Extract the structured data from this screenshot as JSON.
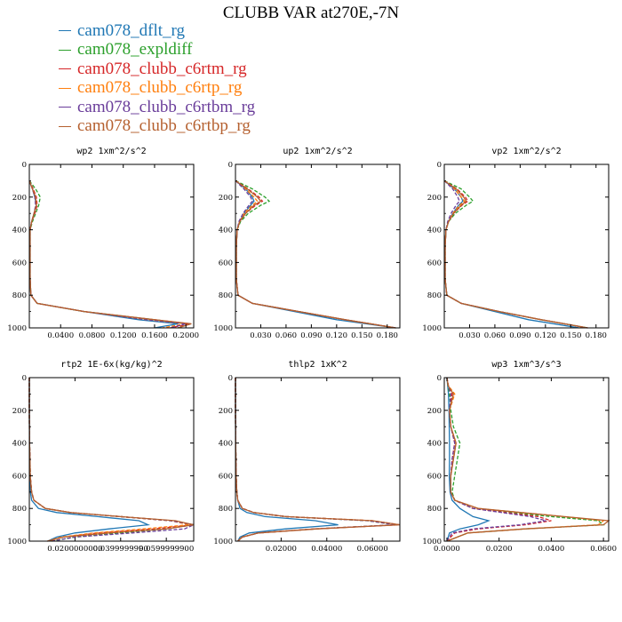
{
  "title": "CLUBB VAR at270E,-7N",
  "legend": [
    {
      "name": "cam078_dflt_rg",
      "color": "#1f77b4"
    },
    {
      "name": "cam078_expldiff",
      "color": "#2ca02c"
    },
    {
      "name": "cam078_clubb_c6rtm_rg",
      "color": "#d62728"
    },
    {
      "name": "cam078_clubb_c6rtp_rg",
      "color": "#ff7f0e"
    },
    {
      "name": "cam078_clubb_c6rtbm_rg",
      "color": "#6a3d9a"
    },
    {
      "name": "cam078_clubb_c6rtbp_rg",
      "color": "#b5602f"
    }
  ],
  "chart_data": [
    {
      "type": "line",
      "title": "wp2 1xm^2/s^2",
      "xlim": [
        0,
        0.21
      ],
      "ylim": [
        1000,
        0
      ],
      "xticks": [
        "0.0400",
        "0.0800",
        "0.1200",
        "0.1600",
        "0.2000"
      ],
      "xtick_values": [
        0.04,
        0.08,
        0.12,
        0.16,
        0.2
      ],
      "yticks": [
        "0",
        "200",
        "400",
        "600",
        "800",
        "1000"
      ],
      "y": [
        100,
        150,
        200,
        250,
        300,
        350,
        400,
        500,
        600,
        700,
        800,
        850,
        900,
        950,
        975,
        1000
      ],
      "series": [
        {
          "color": "#1f77b4",
          "dash": "",
          "values": [
            0,
            0.004,
            0.007,
            0.009,
            0.006,
            0.003,
            0.001,
            0.001,
            0.001,
            0.001,
            0.002,
            0.01,
            0.07,
            0.14,
            0.19,
            0.16
          ]
        },
        {
          "color": "#2ca02c",
          "dash": "4,2",
          "values": [
            0,
            0.008,
            0.014,
            0.012,
            0.008,
            0.004,
            0.001,
            0.001,
            0.001,
            0.001,
            0.002,
            0.01,
            0.07,
            0.16,
            0.2,
            0.19
          ]
        },
        {
          "color": "#d62728",
          "dash": "4,2",
          "values": [
            0,
            0.005,
            0.009,
            0.01,
            0.007,
            0.003,
            0.001,
            0.001,
            0.001,
            0.001,
            0.002,
            0.01,
            0.07,
            0.16,
            0.205,
            0.18
          ]
        },
        {
          "color": "#ff7f0e",
          "dash": "4,2",
          "values": [
            0,
            0.004,
            0.008,
            0.009,
            0.006,
            0.003,
            0.001,
            0.001,
            0.001,
            0.001,
            0.002,
            0.01,
            0.07,
            0.15,
            0.2,
            0.17
          ]
        },
        {
          "color": "#6a3d9a",
          "dash": "4,2",
          "values": [
            0,
            0.004,
            0.007,
            0.008,
            0.006,
            0.003,
            0.001,
            0.001,
            0.001,
            0.001,
            0.002,
            0.01,
            0.07,
            0.15,
            0.2,
            0.18
          ]
        },
        {
          "color": "#b5602f",
          "dash": "",
          "values": [
            0,
            0.004,
            0.008,
            0.009,
            0.006,
            0.003,
            0.001,
            0.001,
            0.001,
            0.001,
            0.002,
            0.01,
            0.07,
            0.16,
            0.207,
            0.19
          ]
        }
      ]
    },
    {
      "type": "line",
      "title": "up2 1xm^2/s^2",
      "xlim": [
        0,
        0.195
      ],
      "ylim": [
        1000,
        0
      ],
      "xticks": [
        "0.030",
        "0.060",
        "0.090",
        "0.120",
        "0.150",
        "0.180"
      ],
      "xtick_values": [
        0.03,
        0.06,
        0.09,
        0.12,
        0.15,
        0.18
      ],
      "yticks": [
        "0",
        "200",
        "400",
        "600",
        "800",
        "1000"
      ],
      "y": [
        100,
        150,
        200,
        225,
        250,
        300,
        350,
        400,
        500,
        600,
        700,
        800,
        850,
        900,
        950,
        1000
      ],
      "series": [
        {
          "color": "#1f77b4",
          "dash": "",
          "values": [
            0,
            0.012,
            0.02,
            0.022,
            0.018,
            0.01,
            0.005,
            0.002,
            0.001,
            0.001,
            0.001,
            0.003,
            0.02,
            0.07,
            0.12,
            0.19
          ]
        },
        {
          "color": "#2ca02c",
          "dash": "4,2",
          "values": [
            0,
            0.02,
            0.035,
            0.04,
            0.03,
            0.015,
            0.006,
            0.002,
            0.001,
            0.001,
            0.001,
            0.003,
            0.02,
            0.075,
            0.13,
            0.19
          ]
        },
        {
          "color": "#d62728",
          "dash": "4,2",
          "values": [
            0,
            0.015,
            0.028,
            0.032,
            0.024,
            0.012,
            0.005,
            0.002,
            0.001,
            0.001,
            0.001,
            0.003,
            0.02,
            0.075,
            0.13,
            0.19
          ]
        },
        {
          "color": "#ff7f0e",
          "dash": "4,2",
          "values": [
            0,
            0.012,
            0.022,
            0.026,
            0.02,
            0.01,
            0.005,
            0.002,
            0.001,
            0.001,
            0.001,
            0.003,
            0.02,
            0.075,
            0.13,
            0.19
          ]
        },
        {
          "color": "#6a3d9a",
          "dash": "4,2",
          "values": [
            0,
            0.01,
            0.018,
            0.02,
            0.016,
            0.009,
            0.004,
            0.002,
            0.001,
            0.001,
            0.001,
            0.003,
            0.02,
            0.075,
            0.13,
            0.19
          ]
        },
        {
          "color": "#b5602f",
          "dash": "",
          "values": [
            0,
            0.014,
            0.026,
            0.03,
            0.022,
            0.012,
            0.005,
            0.002,
            0.001,
            0.001,
            0.001,
            0.003,
            0.02,
            0.075,
            0.13,
            0.19
          ]
        }
      ]
    },
    {
      "type": "line",
      "title": "vp2 1xm^2/s^2",
      "xlim": [
        0,
        0.195
      ],
      "ylim": [
        1000,
        0
      ],
      "xticks": [
        "0.030",
        "0.060",
        "0.090",
        "0.120",
        "0.150",
        "0.180"
      ],
      "xtick_values": [
        0.03,
        0.06,
        0.09,
        0.12,
        0.15,
        0.18
      ],
      "yticks": [
        "0",
        "200",
        "400",
        "600",
        "800",
        "1000"
      ],
      "y": [
        100,
        150,
        200,
        225,
        250,
        300,
        350,
        400,
        500,
        600,
        700,
        800,
        850,
        900,
        950,
        1000
      ],
      "series": [
        {
          "color": "#1f77b4",
          "dash": "",
          "values": [
            0,
            0.012,
            0.02,
            0.022,
            0.017,
            0.01,
            0.005,
            0.002,
            0.001,
            0.001,
            0.001,
            0.003,
            0.02,
            0.06,
            0.1,
            0.16
          ]
        },
        {
          "color": "#2ca02c",
          "dash": "4,2",
          "values": [
            0,
            0.02,
            0.03,
            0.034,
            0.026,
            0.013,
            0.005,
            0.002,
            0.001,
            0.001,
            0.001,
            0.003,
            0.02,
            0.065,
            0.115,
            0.17
          ]
        },
        {
          "color": "#d62728",
          "dash": "4,2",
          "values": [
            0,
            0.015,
            0.025,
            0.028,
            0.021,
            0.011,
            0.005,
            0.002,
            0.001,
            0.001,
            0.001,
            0.003,
            0.02,
            0.065,
            0.115,
            0.17
          ]
        },
        {
          "color": "#ff7f0e",
          "dash": "4,2",
          "values": [
            0,
            0.012,
            0.02,
            0.024,
            0.018,
            0.01,
            0.005,
            0.002,
            0.001,
            0.001,
            0.001,
            0.003,
            0.02,
            0.065,
            0.115,
            0.17
          ]
        },
        {
          "color": "#6a3d9a",
          "dash": "4,2",
          "values": [
            0,
            0.01,
            0.016,
            0.018,
            0.014,
            0.008,
            0.004,
            0.002,
            0.001,
            0.001,
            0.001,
            0.003,
            0.02,
            0.065,
            0.115,
            0.17
          ]
        },
        {
          "color": "#b5602f",
          "dash": "",
          "values": [
            0,
            0.014,
            0.023,
            0.026,
            0.02,
            0.011,
            0.005,
            0.002,
            0.001,
            0.001,
            0.001,
            0.003,
            0.02,
            0.065,
            0.115,
            0.17
          ]
        }
      ]
    },
    {
      "type": "line",
      "title": "rtp2 1E-6x(kg/kg)^2",
      "xlim": [
        0,
        0.072
      ],
      "ylim": [
        1000,
        0
      ],
      "xticks": [
        "0.0200000000",
        "0.0399999990",
        "0.0599999900"
      ],
      "xtick_values": [
        0.02,
        0.04,
        0.06
      ],
      "yticks": [
        "0",
        "200",
        "400",
        "600",
        "800",
        "1000"
      ],
      "y": [
        0,
        200,
        400,
        500,
        600,
        700,
        750,
        800,
        825,
        850,
        875,
        900,
        925,
        950,
        975,
        1000
      ],
      "series": [
        {
          "color": "#1f77b4",
          "dash": "",
          "values": [
            0,
            0,
            0.0001,
            0.0002,
            0.0003,
            0.0005,
            0.001,
            0.004,
            0.012,
            0.03,
            0.048,
            0.052,
            0.035,
            0.02,
            0.012,
            0.008
          ]
        },
        {
          "color": "#2ca02c",
          "dash": "4,2",
          "values": [
            0,
            0,
            0.0001,
            0.0003,
            0.0004,
            0.001,
            0.002,
            0.007,
            0.018,
            0.04,
            0.062,
            0.072,
            0.06,
            0.04,
            0.02,
            0.01
          ]
        },
        {
          "color": "#d62728",
          "dash": "4,2",
          "values": [
            0,
            0,
            0.0001,
            0.0003,
            0.0004,
            0.001,
            0.002,
            0.007,
            0.018,
            0.04,
            0.062,
            0.072,
            0.055,
            0.03,
            0.015,
            0.008
          ]
        },
        {
          "color": "#ff7f0e",
          "dash": "4,2",
          "values": [
            0,
            0,
            0.0001,
            0.0003,
            0.0004,
            0.001,
            0.002,
            0.007,
            0.018,
            0.04,
            0.062,
            0.07,
            0.05,
            0.028,
            0.014,
            0.008
          ]
        },
        {
          "color": "#6a3d9a",
          "dash": "4,2",
          "values": [
            0,
            0,
            0.0001,
            0.0003,
            0.0004,
            0.001,
            0.002,
            0.007,
            0.018,
            0.04,
            0.062,
            0.072,
            0.068,
            0.045,
            0.02,
            0.01
          ]
        },
        {
          "color": "#b5602f",
          "dash": "",
          "values": [
            0,
            0,
            0.0001,
            0.0003,
            0.0004,
            0.001,
            0.002,
            0.007,
            0.018,
            0.04,
            0.064,
            0.072,
            0.06,
            0.035,
            0.015,
            0.008
          ]
        }
      ]
    },
    {
      "type": "line",
      "title": "thlp2 1xK^2",
      "xlim": [
        0,
        0.072
      ],
      "ylim": [
        1000,
        0
      ],
      "xticks": [
        "0.02000",
        "0.04000",
        "0.06000"
      ],
      "xtick_values": [
        0.02,
        0.04,
        0.06
      ],
      "yticks": [
        "0",
        "200",
        "400",
        "600",
        "800",
        "1000"
      ],
      "y": [
        0,
        200,
        400,
        600,
        700,
        750,
        800,
        825,
        850,
        875,
        900,
        925,
        950,
        975,
        1000
      ],
      "series": [
        {
          "color": "#1f77b4",
          "dash": "",
          "values": [
            0,
            0,
            0.0001,
            0.0003,
            0.0006,
            0.001,
            0.002,
            0.005,
            0.013,
            0.035,
            0.045,
            0.022,
            0.006,
            0.002,
            0.001
          ]
        },
        {
          "color": "#2ca02c",
          "dash": "4,2",
          "values": [
            0,
            0,
            0.0001,
            0.0003,
            0.0006,
            0.001,
            0.003,
            0.008,
            0.022,
            0.058,
            0.07,
            0.035,
            0.01,
            0.003,
            0.001
          ]
        },
        {
          "color": "#d62728",
          "dash": "4,2",
          "values": [
            0,
            0,
            0.0001,
            0.0003,
            0.0006,
            0.001,
            0.003,
            0.008,
            0.022,
            0.06,
            0.072,
            0.035,
            0.01,
            0.003,
            0.001
          ]
        },
        {
          "color": "#ff7f0e",
          "dash": "4,2",
          "values": [
            0,
            0,
            0.0001,
            0.0003,
            0.0006,
            0.001,
            0.003,
            0.008,
            0.022,
            0.06,
            0.07,
            0.035,
            0.01,
            0.003,
            0.001
          ]
        },
        {
          "color": "#6a3d9a",
          "dash": "4,2",
          "values": [
            0,
            0,
            0.0001,
            0.0003,
            0.0006,
            0.001,
            0.003,
            0.008,
            0.022,
            0.058,
            0.07,
            0.035,
            0.01,
            0.003,
            0.001
          ]
        },
        {
          "color": "#b5602f",
          "dash": "",
          "values": [
            0,
            0,
            0.0001,
            0.0003,
            0.0006,
            0.001,
            0.003,
            0.008,
            0.022,
            0.06,
            0.072,
            0.036,
            0.01,
            0.003,
            0.001
          ]
        }
      ]
    },
    {
      "type": "line",
      "title": "wp3 1xm^3/s^3",
      "xlim": [
        -0.001,
        0.062
      ],
      "ylim": [
        1000,
        0
      ],
      "xticks": [
        "0.0000",
        "0.0200",
        "0.0400",
        "0.0600"
      ],
      "xtick_values": [
        0,
        0.02,
        0.04,
        0.06
      ],
      "yticks": [
        "0",
        "200",
        "400",
        "600",
        "800",
        "1000"
      ],
      "y": [
        0,
        50,
        100,
        200,
        300,
        400,
        500,
        600,
        700,
        750,
        800,
        850,
        875,
        900,
        925,
        950,
        1000
      ],
      "series": [
        {
          "color": "#1f77b4",
          "dash": "",
          "values": [
            0,
            0.0003,
            0.0006,
            0.0008,
            0.0009,
            0.001,
            0.001,
            0.0009,
            0.0012,
            0.002,
            0.005,
            0.01,
            0.016,
            0.012,
            0.005,
            0.001,
            0
          ]
        },
        {
          "color": "#2ca02c",
          "dash": "4,2",
          "values": [
            0,
            0.0004,
            0.001,
            0.0015,
            0.0025,
            0.005,
            0.004,
            0.003,
            0.002,
            0.003,
            0.01,
            0.04,
            0.058,
            0.06,
            0.03,
            0.008,
            0
          ]
        },
        {
          "color": "#d62728",
          "dash": "4,2",
          "values": [
            0,
            0.0006,
            0.002,
            0.001,
            0.0015,
            0.003,
            0.002,
            0.0015,
            0.0015,
            0.003,
            0.01,
            0.035,
            0.04,
            0.03,
            0.012,
            0.003,
            0
          ]
        },
        {
          "color": "#ff7f0e",
          "dash": "4,2",
          "values": [
            0,
            0.0006,
            0.003,
            0.001,
            0.0015,
            0.0035,
            0.0025,
            0.0015,
            0.0015,
            0.003,
            0.012,
            0.045,
            0.06,
            0.058,
            0.03,
            0.008,
            0
          ]
        },
        {
          "color": "#6a3d9a",
          "dash": "4,2",
          "values": [
            0,
            0.0005,
            0.0015,
            0.001,
            0.0015,
            0.003,
            0.002,
            0.0015,
            0.0015,
            0.003,
            0.01,
            0.032,
            0.038,
            0.028,
            0.01,
            0.002,
            0
          ]
        },
        {
          "color": "#b5602f",
          "dash": "",
          "values": [
            0,
            0.0005,
            0.0025,
            0.001,
            0.0015,
            0.0035,
            0.0025,
            0.0015,
            0.0015,
            0.003,
            0.012,
            0.045,
            0.062,
            0.06,
            0.03,
            0.008,
            0
          ]
        }
      ]
    }
  ]
}
